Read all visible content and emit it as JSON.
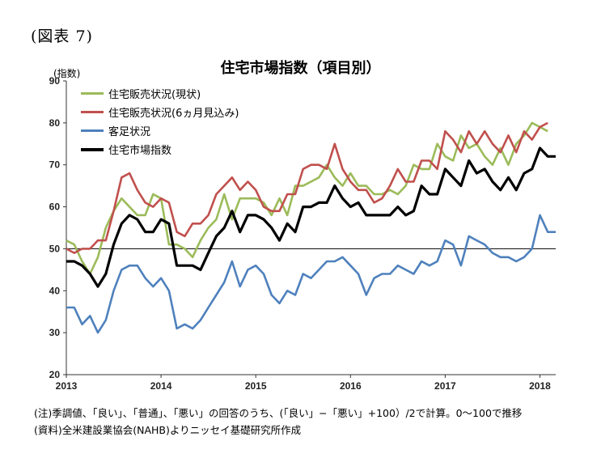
{
  "figure_label": "(図表 7)",
  "chart_data": {
    "type": "line",
    "title": "住宅市場指数（項目別）",
    "ylabel": "(指数)",
    "ylim": [
      20,
      90
    ],
    "yticks": [
      "20",
      "30",
      "40",
      "50",
      "60",
      "70",
      "80",
      "90"
    ],
    "xticks": [
      "2013",
      "2014",
      "2015",
      "2016",
      "2017",
      "2018"
    ],
    "reference_line": 50,
    "grid": false,
    "legend_position": "top-left",
    "series": [
      {
        "name": "住宅販売状況(現状)",
        "color": "#9bbb59",
        "values": [
          52,
          51,
          47,
          44,
          48,
          55,
          59,
          62,
          60,
          58,
          58,
          63,
          62,
          51,
          51,
          50,
          48,
          52,
          55,
          57,
          63,
          57,
          62,
          62,
          62,
          61,
          58,
          62,
          58,
          65,
          65,
          66,
          67,
          70,
          67,
          65,
          68,
          65,
          65,
          63,
          63,
          64,
          63,
          65,
          70,
          69,
          69,
          75,
          72,
          71,
          77,
          74,
          75,
          72,
          70,
          74,
          70,
          75,
          77,
          80,
          79,
          78
        ]
      },
      {
        "name": "住宅販売状況(6ヵ月見込み)",
        "color": "#c0504d",
        "values": [
          50,
          49,
          50,
          50,
          52,
          52,
          59,
          67,
          68,
          64,
          61,
          60,
          62,
          61,
          54,
          53,
          56,
          56,
          58,
          63,
          65,
          67,
          64,
          66,
          64,
          60,
          59,
          59,
          63,
          63,
          69,
          70,
          70,
          69,
          75,
          69,
          66,
          64,
          64,
          61,
          62,
          65,
          69,
          66,
          66,
          71,
          71,
          69,
          78,
          76,
          73,
          78,
          75,
          78,
          75,
          73,
          77,
          73,
          78,
          76,
          79,
          80
        ]
      },
      {
        "name": "客足状況",
        "color": "#4f81bd",
        "values": [
          36,
          36,
          32,
          34,
          30,
          33,
          40,
          45,
          46,
          46,
          43,
          41,
          43,
          40,
          31,
          32,
          31,
          33,
          36,
          39,
          42,
          47,
          41,
          45,
          46,
          44,
          39,
          37,
          40,
          39,
          44,
          43,
          45,
          47,
          47,
          48,
          46,
          44,
          39,
          43,
          44,
          44,
          46,
          45,
          44,
          47,
          46,
          47,
          52,
          51,
          46,
          53,
          52,
          51,
          49,
          48,
          48,
          47,
          48,
          50,
          58,
          54,
          54
        ]
      },
      {
        "name": "住宅市場指数",
        "color": "#000000",
        "values": [
          47,
          47,
          46,
          44,
          41,
          44,
          51,
          56,
          58,
          57,
          54,
          54,
          57,
          56,
          46,
          46,
          46,
          45,
          49,
          53,
          55,
          59,
          54,
          58,
          58,
          57,
          55,
          52,
          56,
          54,
          60,
          60,
          61,
          61,
          65,
          62,
          60,
          61,
          58,
          58,
          58,
          58,
          60,
          58,
          59,
          65,
          63,
          63,
          69,
          67,
          65,
          71,
          68,
          69,
          66,
          64,
          67,
          64,
          68,
          69,
          74,
          72,
          72
        ]
      }
    ]
  },
  "notes": [
    "(注)季調値、「良い」、「普通」、「悪い」の回答のうち、(「良い」−「悪い」+100）/2で計算。0〜100で推移",
    "(資料)全米建設業協会(NAHB)よりニッセイ基礎研究所作成"
  ]
}
